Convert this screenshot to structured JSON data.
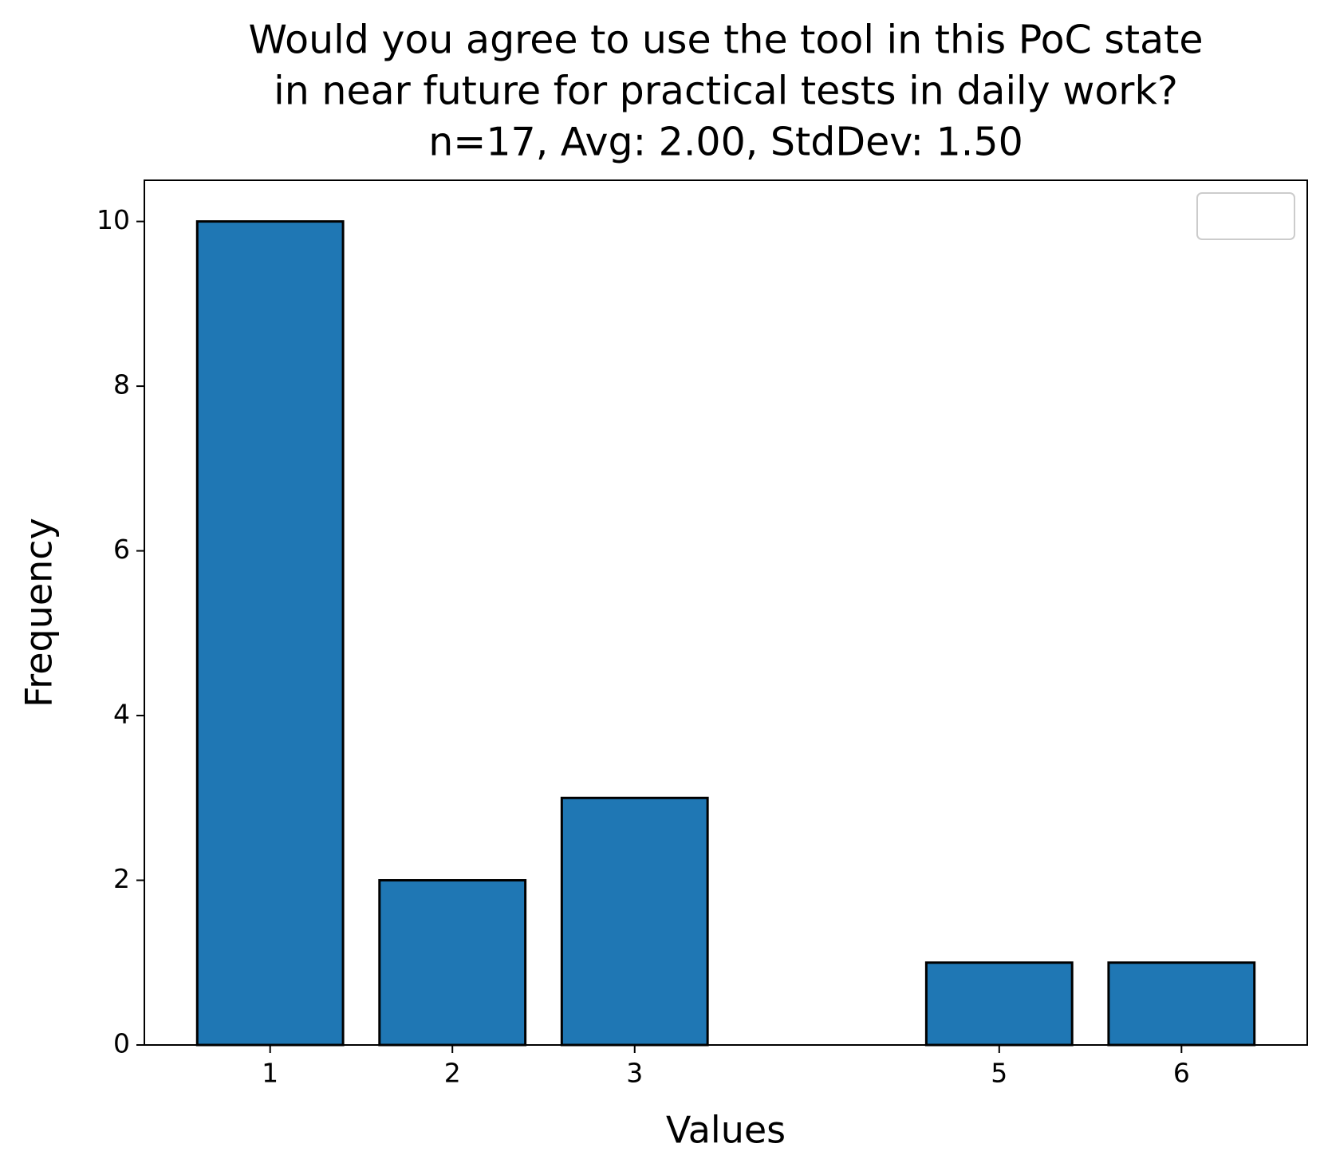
{
  "chart_data": {
    "type": "bar",
    "title": [
      "Would you agree to use the tool in this PoC state",
      "in near future for practical tests in daily work?",
      "n=17, Avg: 2.00, StdDev: 1.50"
    ],
    "x_label": "Values",
    "y_label": "Frequency",
    "x": [
      1,
      2,
      3,
      5,
      6
    ],
    "values": [
      10,
      2,
      3,
      1,
      1
    ],
    "color": "#1f77b4",
    "xlim": [
      0.31,
      6.69
    ],
    "xticks": [
      1,
      2,
      3,
      5,
      6
    ],
    "ylim": [
      0,
      10.5
    ],
    "yticks": [
      0,
      2,
      4,
      6,
      8,
      10
    ],
    "grid": false,
    "legend": "upper right"
  }
}
